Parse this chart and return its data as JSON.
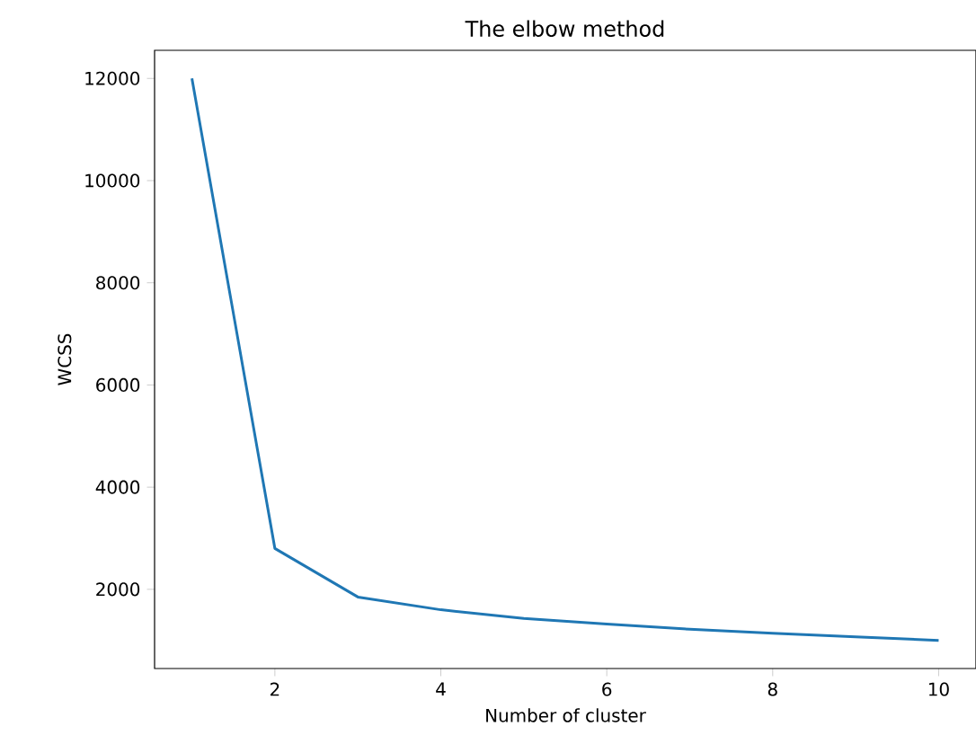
{
  "chart_data": {
    "type": "line",
    "title": "The elbow method",
    "xlabel": "Number of cluster",
    "ylabel": "WCSS",
    "x": [
      1,
      2,
      3,
      4,
      5,
      6,
      7,
      8,
      9,
      10
    ],
    "series": [
      {
        "color": "#1f77b4",
        "values": [
          12000,
          2800,
          1850,
          1600,
          1430,
          1320,
          1220,
          1140,
          1070,
          1000
        ]
      }
    ],
    "xlim": [
      0.55,
      10.45
    ],
    "ylim": [
      450,
      12550
    ],
    "xticks": [
      2,
      4,
      6,
      8,
      10
    ],
    "yticks": [
      2000,
      4000,
      6000,
      8000,
      10000,
      12000
    ],
    "grid": false,
    "marker": "none",
    "line_style": "solid"
  }
}
